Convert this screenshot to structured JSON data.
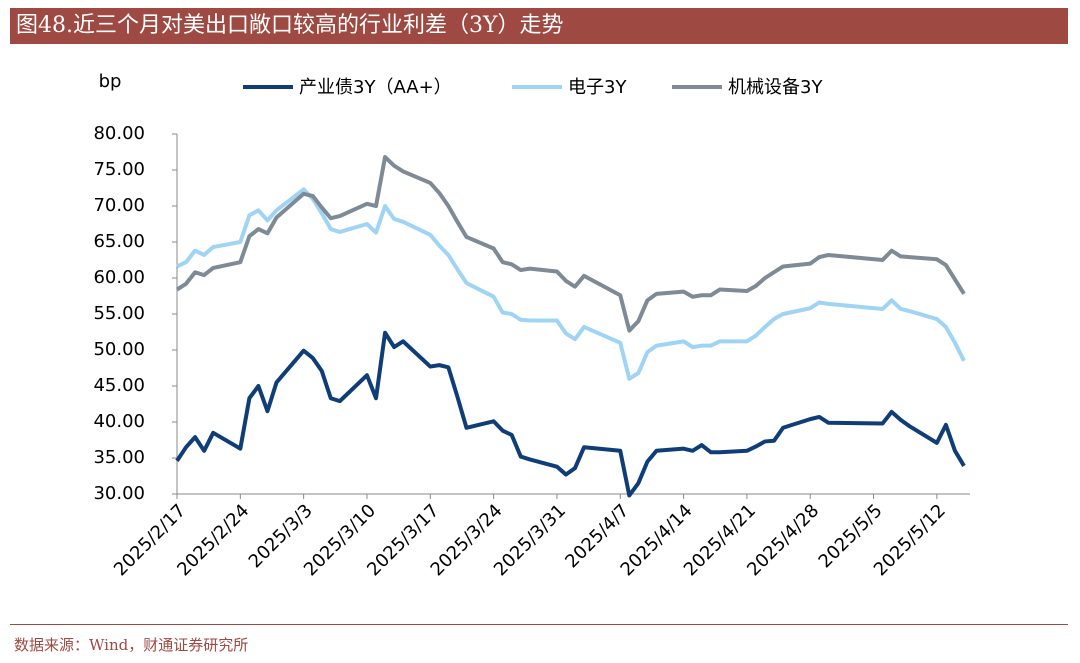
{
  "chart_data": {
    "type": "line",
    "title": "图48.近三个月对美出口敞口较高的行业利差（3Y）走势",
    "source": "数据来源：Wind，财通证券研究所",
    "y_label": "bp",
    "x": [
      "2025/2/17",
      "2025/2/18",
      "2025/2/19",
      "2025/2/20",
      "2025/2/21",
      "2025/2/24",
      "2025/2/25",
      "2025/2/26",
      "2025/2/27",
      "2025/2/28",
      "2025/3/3",
      "2025/3/4",
      "2025/3/5",
      "2025/3/6",
      "2025/3/7",
      "2025/3/10",
      "2025/3/11",
      "2025/3/12",
      "2025/3/13",
      "2025/3/14",
      "2025/3/17",
      "2025/3/18",
      "2025/3/19",
      "2025/3/20",
      "2025/3/21",
      "2025/3/24",
      "2025/3/25",
      "2025/3/26",
      "2025/3/27",
      "2025/3/28",
      "2025/3/31",
      "2025/4/1",
      "2025/4/2",
      "2025/4/3",
      "2025/4/7",
      "2025/4/8",
      "2025/4/9",
      "2025/4/10",
      "2025/4/11",
      "2025/4/14",
      "2025/4/15",
      "2025/4/16",
      "2025/4/17",
      "2025/4/18",
      "2025/4/21",
      "2025/4/22",
      "2025/4/23",
      "2025/4/24",
      "2025/4/25",
      "2025/4/28",
      "2025/4/29",
      "2025/4/30",
      "2025/5/6",
      "2025/5/7",
      "2025/5/8",
      "2025/5/9",
      "2025/5/12",
      "2025/5/13",
      "2025/5/14",
      "2025/5/15"
    ],
    "xlim": [
      "2025/2/17",
      "2025/5/15"
    ],
    "xticks": [
      "2025/2/17",
      "2025/2/24",
      "2025/3/3",
      "2025/3/10",
      "2025/3/17",
      "2025/3/24",
      "2025/3/31",
      "2025/4/7",
      "2025/4/14",
      "2025/4/21",
      "2025/4/28",
      "2025/5/5",
      "2025/5/12"
    ],
    "ylim": [
      30,
      80
    ],
    "yticks": [
      {
        "value": 30,
        "label": "30.00"
      },
      {
        "value": 35,
        "label": "35.00"
      },
      {
        "value": 40,
        "label": "40.00"
      },
      {
        "value": 45,
        "label": "45.00"
      },
      {
        "value": 50,
        "label": "50.00"
      },
      {
        "value": 55,
        "label": "55.00"
      },
      {
        "value": 60,
        "label": "60.00"
      },
      {
        "value": 65,
        "label": "65.00"
      },
      {
        "value": 70,
        "label": "70.00"
      },
      {
        "value": 75,
        "label": "75.00"
      },
      {
        "value": 80,
        "label": "80.00"
      }
    ],
    "legend": "top",
    "series": [
      {
        "name": "产业债3Y（AA+）",
        "color": "#0f3d78",
        "values": [
          34.6,
          36.5,
          37.9,
          36.0,
          38.5,
          36.3,
          43.3,
          45.0,
          41.5,
          45.5,
          49.9,
          48.9,
          47.1,
          43.3,
          42.9,
          46.5,
          43.3,
          52.4,
          50.4,
          51.2,
          47.7,
          47.9,
          47.6,
          43.5,
          39.2,
          40.1,
          38.8,
          38.2,
          35.2,
          34.8,
          33.8,
          32.7,
          33.6,
          36.5,
          36.0,
          29.8,
          31.5,
          34.5,
          36.0,
          36.3,
          36.0,
          36.8,
          35.8,
          35.8,
          36.0,
          36.6,
          37.3,
          37.4,
          39.2,
          40.4,
          40.7,
          39.9,
          39.8,
          41.4,
          40.3,
          39.4,
          37.1,
          39.6,
          36.0,
          33.9
        ]
      },
      {
        "name": "电子3Y",
        "color": "#9fd4f5",
        "values": [
          61.6,
          62.2,
          63.8,
          63.2,
          64.3,
          65.0,
          68.7,
          69.4,
          68.0,
          69.4,
          72.3,
          71.0,
          69.0,
          66.8,
          66.4,
          67.5,
          66.3,
          70.0,
          68.2,
          67.8,
          66.0,
          64.5,
          63.2,
          61.2,
          59.3,
          57.4,
          55.2,
          55.0,
          54.2,
          54.1,
          54.1,
          52.3,
          51.5,
          53.2,
          51.0,
          46.0,
          46.8,
          49.7,
          50.6,
          51.2,
          50.4,
          50.6,
          50.6,
          51.2,
          51.2,
          52.0,
          53.2,
          54.3,
          55.0,
          55.8,
          56.6,
          56.4,
          55.7,
          56.9,
          55.7,
          55.4,
          54.3,
          53.2,
          51.0,
          48.5
        ]
      },
      {
        "name": "机械设备3Y",
        "color": "#7e8a96",
        "values": [
          58.4,
          59.2,
          60.8,
          60.4,
          61.4,
          62.2,
          65.8,
          66.8,
          66.2,
          68.4,
          71.7,
          71.4,
          69.8,
          68.3,
          68.6,
          70.3,
          70.0,
          76.8,
          75.6,
          74.8,
          73.2,
          71.8,
          70.0,
          67.8,
          65.7,
          64.1,
          62.2,
          61.9,
          61.1,
          61.3,
          60.9,
          59.6,
          58.8,
          60.3,
          57.6,
          52.7,
          54.0,
          56.9,
          57.8,
          58.1,
          57.4,
          57.6,
          57.6,
          58.4,
          58.2,
          58.9,
          60.0,
          60.8,
          61.6,
          62.0,
          62.9,
          63.2,
          62.5,
          63.8,
          63.0,
          62.9,
          62.6,
          61.8,
          59.8,
          57.8
        ]
      }
    ]
  }
}
